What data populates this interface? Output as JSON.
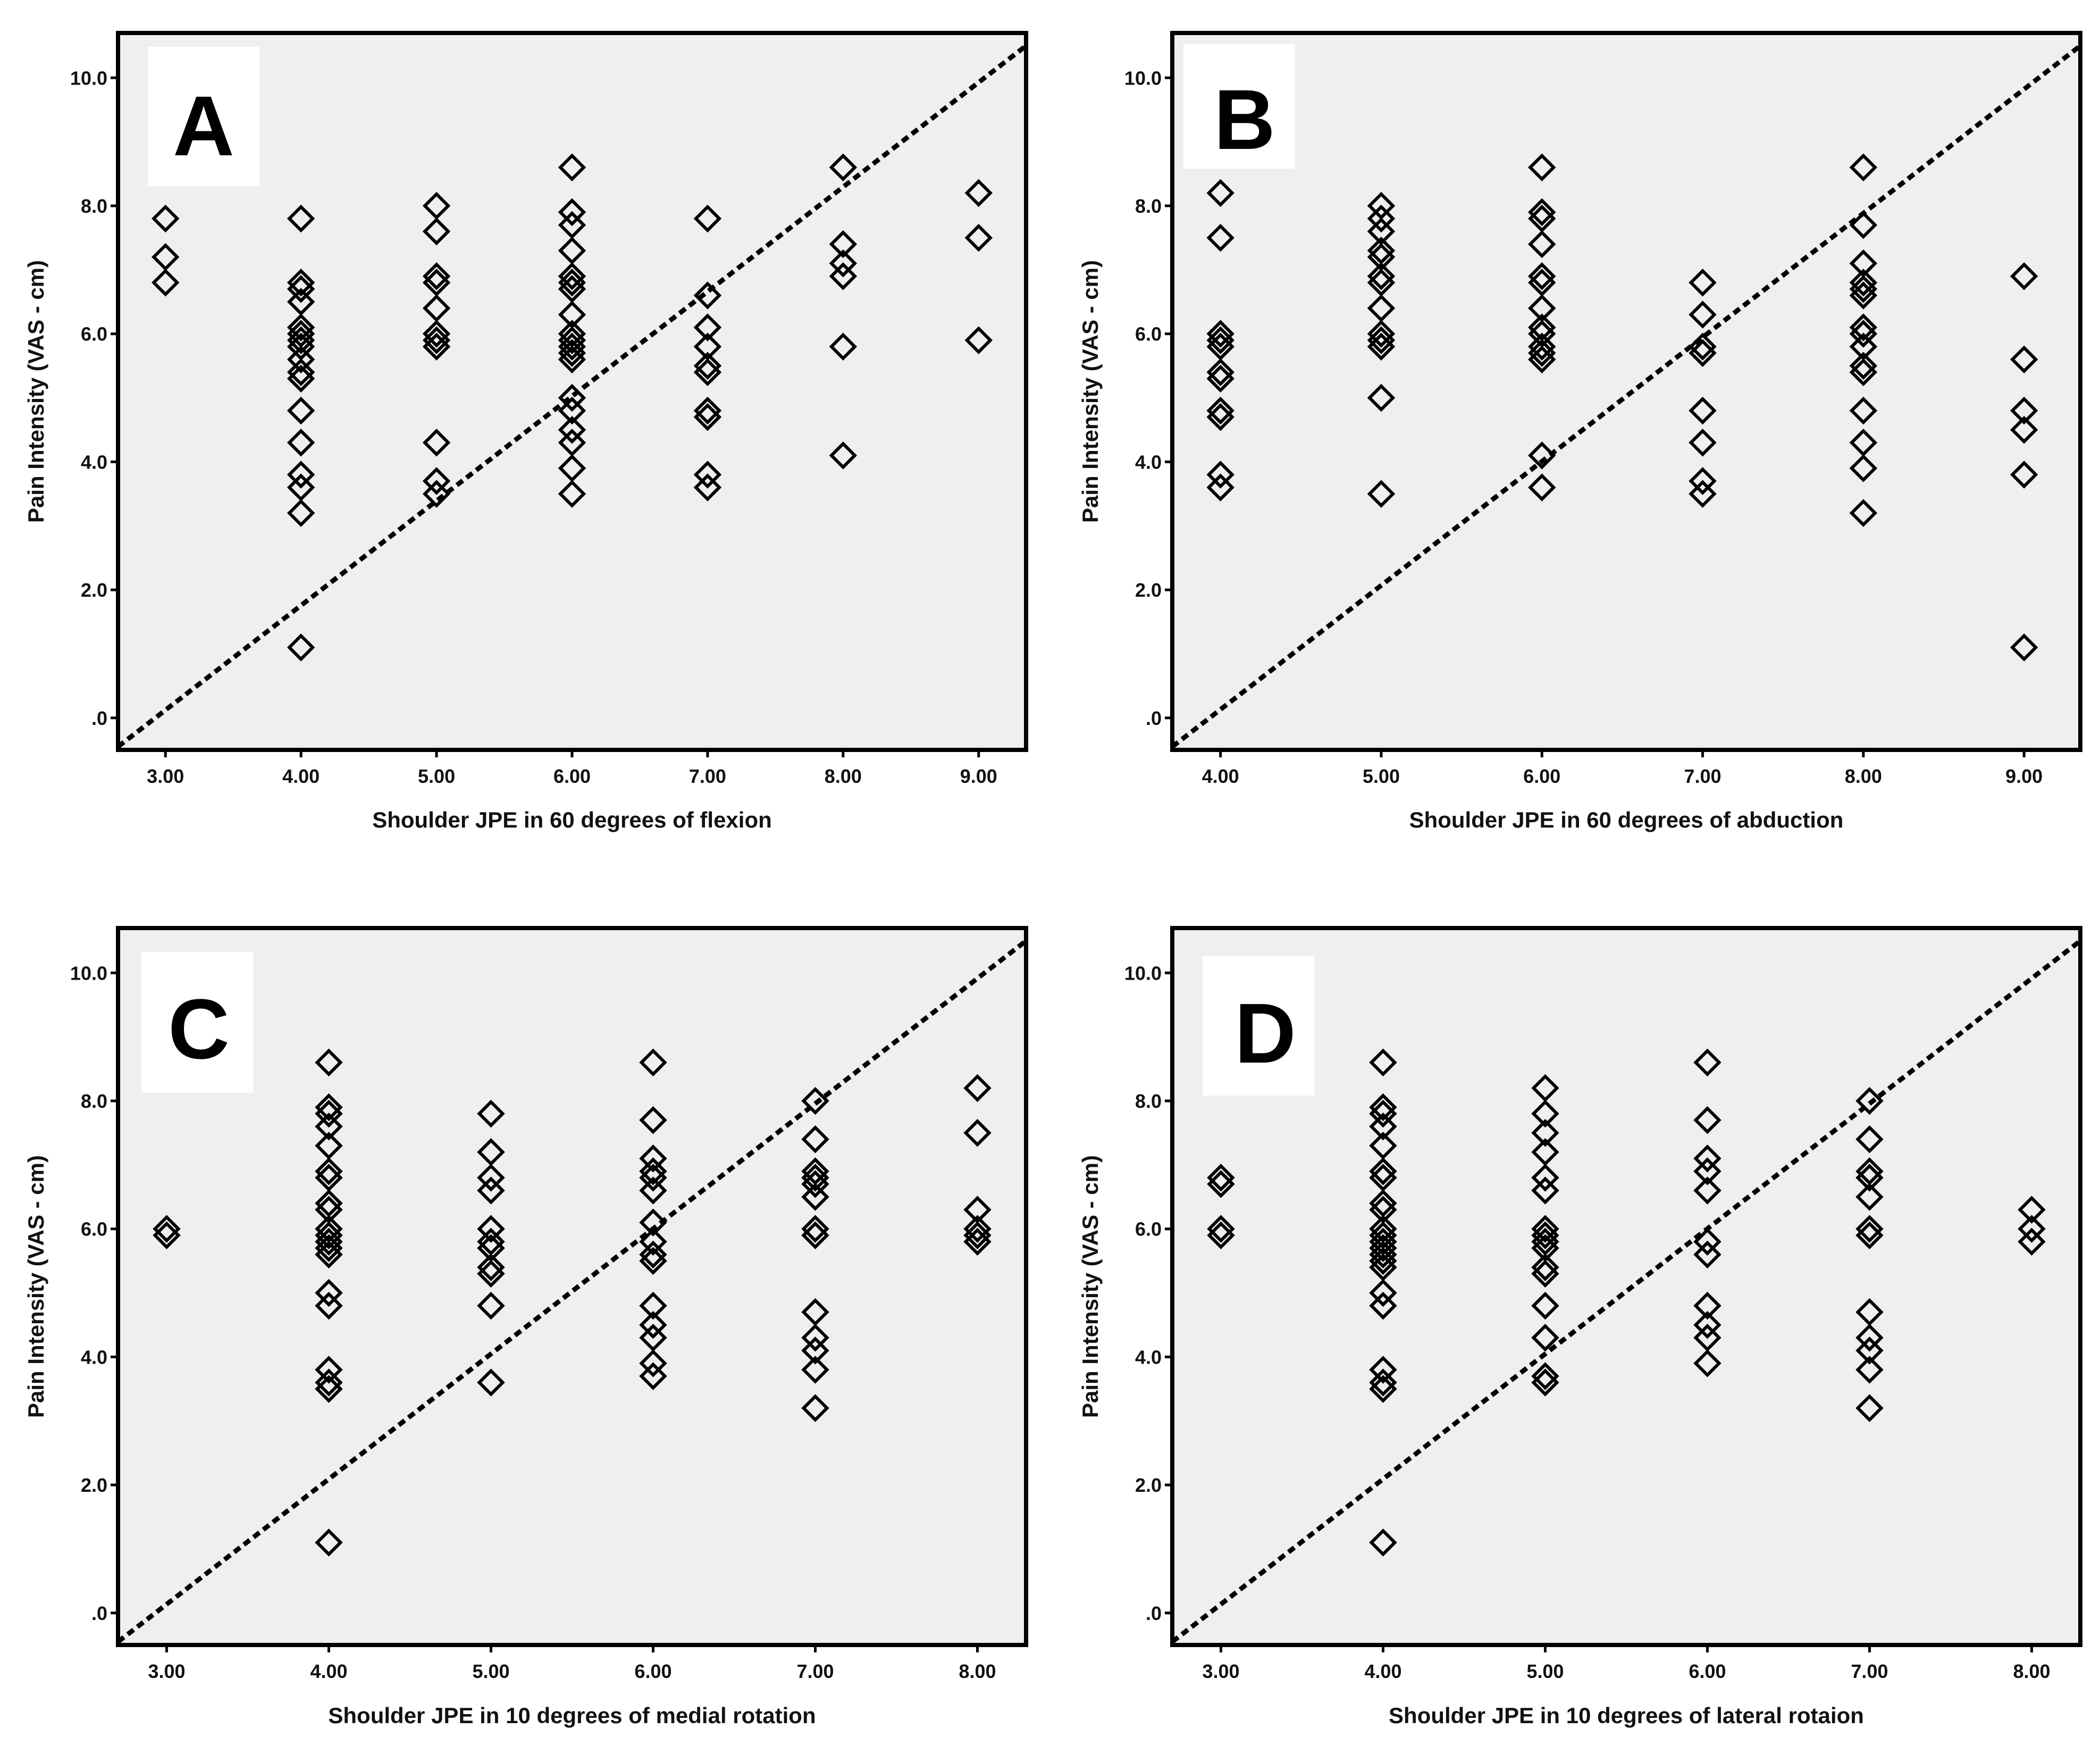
{
  "figure": {
    "marker_color": "#000000",
    "plot_background": "#efefef",
    "page_background": "#ffffff",
    "marker": "diamond-open",
    "reference_line": "dashed diagonal"
  },
  "chart_data": [
    {
      "type": "scatter",
      "panel_label": "A",
      "xlabel": "Shoulder JPE in 60 degrees of flexion",
      "ylabel": "Pain Intensity (VAS - cm)",
      "xlim": [
        2.65,
        9.35
      ],
      "ylim": [
        -0.5,
        10.7
      ],
      "x_ticks": [
        3,
        4,
        5,
        6,
        7,
        8,
        9
      ],
      "x_tick_labels": [
        "3.00",
        "4.00",
        "5.00",
        "6.00",
        "7.00",
        "8.00",
        "9.00"
      ],
      "y_ticks": [
        0,
        2,
        4,
        6,
        8,
        10
      ],
      "y_tick_labels": [
        ".0",
        "2.0",
        "4.0",
        "6.0",
        "8.0",
        "10.0"
      ],
      "reference_line": [
        [
          2.65,
          -0.45
        ],
        [
          9.35,
          10.5
        ]
      ],
      "points": [
        [
          3,
          7.8
        ],
        [
          3,
          7.2
        ],
        [
          3,
          6.8
        ],
        [
          4,
          7.8
        ],
        [
          4,
          6.8
        ],
        [
          4,
          6.7
        ],
        [
          4,
          6.5
        ],
        [
          4,
          6.1
        ],
        [
          4,
          6.0
        ],
        [
          4,
          5.9
        ],
        [
          4,
          5.8
        ],
        [
          4,
          5.6
        ],
        [
          4,
          5.4
        ],
        [
          4,
          5.3
        ],
        [
          4,
          4.8
        ],
        [
          4,
          4.3
        ],
        [
          4,
          3.8
        ],
        [
          4,
          3.6
        ],
        [
          4,
          3.2
        ],
        [
          4,
          1.1
        ],
        [
          5,
          8.0
        ],
        [
          5,
          7.6
        ],
        [
          5,
          6.9
        ],
        [
          5,
          6.8
        ],
        [
          5,
          6.4
        ],
        [
          5,
          6.0
        ],
        [
          5,
          5.9
        ],
        [
          5,
          5.8
        ],
        [
          5,
          4.3
        ],
        [
          5,
          3.7
        ],
        [
          5,
          3.5
        ],
        [
          6,
          8.6
        ],
        [
          6,
          7.9
        ],
        [
          6,
          7.7
        ],
        [
          6,
          7.3
        ],
        [
          6,
          6.9
        ],
        [
          6,
          6.8
        ],
        [
          6,
          6.7
        ],
        [
          6,
          6.3
        ],
        [
          6,
          6.0
        ],
        [
          6,
          5.9
        ],
        [
          6,
          5.8
        ],
        [
          6,
          5.7
        ],
        [
          6,
          5.6
        ],
        [
          6,
          5.0
        ],
        [
          6,
          4.8
        ],
        [
          6,
          4.5
        ],
        [
          6,
          4.3
        ],
        [
          6,
          3.9
        ],
        [
          6,
          3.5
        ],
        [
          7,
          7.8
        ],
        [
          7,
          6.6
        ],
        [
          7,
          6.1
        ],
        [
          7,
          5.8
        ],
        [
          7,
          5.5
        ],
        [
          7,
          5.4
        ],
        [
          7,
          4.8
        ],
        [
          7,
          4.7
        ],
        [
          7,
          3.8
        ],
        [
          7,
          3.6
        ],
        [
          8,
          8.6
        ],
        [
          8,
          7.4
        ],
        [
          8,
          7.1
        ],
        [
          8,
          6.9
        ],
        [
          8,
          5.8
        ],
        [
          8,
          4.1
        ],
        [
          9,
          8.2
        ],
        [
          9,
          7.5
        ],
        [
          9,
          5.9
        ]
      ]
    },
    {
      "type": "scatter",
      "panel_label": "B",
      "xlabel": "Shoulder JPE in 60 degrees of abduction",
      "ylabel": "Pain Intensity (VAS - cm)",
      "xlim": [
        3.7,
        9.35
      ],
      "ylim": [
        -0.5,
        10.7
      ],
      "x_ticks": [
        4,
        5,
        6,
        7,
        8,
        9
      ],
      "x_tick_labels": [
        "4.00",
        "5.00",
        "6.00",
        "7.00",
        "8.00",
        "9.00"
      ],
      "y_ticks": [
        0,
        2,
        4,
        6,
        8,
        10
      ],
      "y_tick_labels": [
        ".0",
        "2.0",
        "4.0",
        "6.0",
        "8.0",
        "10.0"
      ],
      "reference_line": [
        [
          3.7,
          -0.45
        ],
        [
          9.35,
          10.5
        ]
      ],
      "points": [
        [
          4,
          8.2
        ],
        [
          4,
          7.5
        ],
        [
          4,
          6.0
        ],
        [
          4,
          5.9
        ],
        [
          4,
          5.8
        ],
        [
          4,
          5.4
        ],
        [
          4,
          5.3
        ],
        [
          4,
          4.8
        ],
        [
          4,
          4.7
        ],
        [
          4,
          3.8
        ],
        [
          4,
          3.6
        ],
        [
          5,
          8.0
        ],
        [
          5,
          7.8
        ],
        [
          5,
          7.6
        ],
        [
          5,
          7.3
        ],
        [
          5,
          7.2
        ],
        [
          5,
          6.9
        ],
        [
          5,
          6.8
        ],
        [
          5,
          6.4
        ],
        [
          5,
          6.0
        ],
        [
          5,
          5.9
        ],
        [
          5,
          5.8
        ],
        [
          5,
          5.0
        ],
        [
          5,
          3.5
        ],
        [
          6,
          8.6
        ],
        [
          6,
          7.9
        ],
        [
          6,
          7.8
        ],
        [
          6,
          7.4
        ],
        [
          6,
          6.9
        ],
        [
          6,
          6.8
        ],
        [
          6,
          6.4
        ],
        [
          6,
          6.1
        ],
        [
          6,
          6.0
        ],
        [
          6,
          5.8
        ],
        [
          6,
          5.7
        ],
        [
          6,
          5.6
        ],
        [
          6,
          4.1
        ],
        [
          6,
          3.6
        ],
        [
          7,
          6.8
        ],
        [
          7,
          6.3
        ],
        [
          7,
          5.8
        ],
        [
          7,
          5.7
        ],
        [
          7,
          4.8
        ],
        [
          7,
          4.3
        ],
        [
          7,
          3.7
        ],
        [
          7,
          3.5
        ],
        [
          8,
          8.6
        ],
        [
          8,
          7.7
        ],
        [
          8,
          7.1
        ],
        [
          8,
          6.8
        ],
        [
          8,
          6.7
        ],
        [
          8,
          6.6
        ],
        [
          8,
          6.1
        ],
        [
          8,
          6.0
        ],
        [
          8,
          5.8
        ],
        [
          8,
          5.5
        ],
        [
          8,
          5.4
        ],
        [
          8,
          4.8
        ],
        [
          8,
          4.3
        ],
        [
          8,
          3.9
        ],
        [
          8,
          3.2
        ],
        [
          9,
          6.9
        ],
        [
          9,
          5.6
        ],
        [
          9,
          4.8
        ],
        [
          9,
          4.5
        ],
        [
          9,
          3.8
        ],
        [
          9,
          1.1
        ]
      ]
    },
    {
      "type": "scatter",
      "panel_label": "C",
      "xlabel": "Shoulder JPE in 10 degrees of medial rotation",
      "ylabel": "Pain Intensity (VAS - cm)",
      "xlim": [
        2.7,
        8.3
      ],
      "ylim": [
        -0.5,
        10.7
      ],
      "x_ticks": [
        3,
        4,
        5,
        6,
        7,
        8
      ],
      "x_tick_labels": [
        "3.00",
        "4.00",
        "5.00",
        "6.00",
        "7.00",
        "8.00"
      ],
      "y_ticks": [
        0,
        2,
        4,
        6,
        8,
        10
      ],
      "y_tick_labels": [
        ".0",
        "2.0",
        "4.0",
        "6.0",
        "8.0",
        "10.0"
      ],
      "reference_line": [
        [
          2.7,
          -0.45
        ],
        [
          8.3,
          10.5
        ]
      ],
      "points": [
        [
          3,
          6.0
        ],
        [
          3,
          5.9
        ],
        [
          4,
          8.6
        ],
        [
          4,
          7.9
        ],
        [
          4,
          7.8
        ],
        [
          4,
          7.6
        ],
        [
          4,
          7.3
        ],
        [
          4,
          6.9
        ],
        [
          4,
          6.8
        ],
        [
          4,
          6.4
        ],
        [
          4,
          6.3
        ],
        [
          4,
          6.0
        ],
        [
          4,
          5.9
        ],
        [
          4,
          5.8
        ],
        [
          4,
          5.7
        ],
        [
          4,
          5.6
        ],
        [
          4,
          5.0
        ],
        [
          4,
          4.8
        ],
        [
          4,
          3.8
        ],
        [
          4,
          3.6
        ],
        [
          4,
          3.5
        ],
        [
          4,
          1.1
        ],
        [
          5,
          7.8
        ],
        [
          5,
          7.2
        ],
        [
          5,
          6.8
        ],
        [
          5,
          6.6
        ],
        [
          5,
          6.0
        ],
        [
          5,
          5.8
        ],
        [
          5,
          5.7
        ],
        [
          5,
          5.4
        ],
        [
          5,
          5.3
        ],
        [
          5,
          4.8
        ],
        [
          5,
          3.6
        ],
        [
          6,
          8.6
        ],
        [
          6,
          7.7
        ],
        [
          6,
          7.1
        ],
        [
          6,
          6.9
        ],
        [
          6,
          6.8
        ],
        [
          6,
          6.6
        ],
        [
          6,
          6.1
        ],
        [
          6,
          5.8
        ],
        [
          6,
          5.6
        ],
        [
          6,
          5.5
        ],
        [
          6,
          4.8
        ],
        [
          6,
          4.5
        ],
        [
          6,
          4.3
        ],
        [
          6,
          3.9
        ],
        [
          6,
          3.7
        ],
        [
          7,
          8.0
        ],
        [
          7,
          7.4
        ],
        [
          7,
          6.9
        ],
        [
          7,
          6.8
        ],
        [
          7,
          6.7
        ],
        [
          7,
          6.5
        ],
        [
          7,
          6.0
        ],
        [
          7,
          5.9
        ],
        [
          7,
          4.7
        ],
        [
          7,
          4.3
        ],
        [
          7,
          4.1
        ],
        [
          7,
          3.8
        ],
        [
          7,
          3.2
        ],
        [
          8,
          8.2
        ],
        [
          8,
          7.5
        ],
        [
          8,
          6.3
        ],
        [
          8,
          6.0
        ],
        [
          8,
          5.9
        ],
        [
          8,
          5.8
        ]
      ]
    },
    {
      "type": "scatter",
      "panel_label": "D",
      "xlabel": "Shoulder JPE in 10 degrees of lateral rotaion",
      "ylabel": "Pain Intensity (VAS - cm)",
      "xlim": [
        2.7,
        8.3
      ],
      "ylim": [
        -0.5,
        10.7
      ],
      "x_ticks": [
        3,
        4,
        5,
        6,
        7,
        8
      ],
      "x_tick_labels": [
        "3.00",
        "4.00",
        "5.00",
        "6.00",
        "7.00",
        "8.00"
      ],
      "y_ticks": [
        0,
        2,
        4,
        6,
        8,
        10
      ],
      "y_tick_labels": [
        ".0",
        "2.0",
        "4.0",
        "6.0",
        "8.0",
        "10.0"
      ],
      "reference_line": [
        [
          2.7,
          -0.45
        ],
        [
          8.3,
          10.5
        ]
      ],
      "points": [
        [
          3,
          6.8
        ],
        [
          3,
          6.7
        ],
        [
          3,
          6.0
        ],
        [
          3,
          5.9
        ],
        [
          4,
          8.6
        ],
        [
          4,
          7.9
        ],
        [
          4,
          7.8
        ],
        [
          4,
          7.6
        ],
        [
          4,
          7.3
        ],
        [
          4,
          6.9
        ],
        [
          4,
          6.8
        ],
        [
          4,
          6.4
        ],
        [
          4,
          6.3
        ],
        [
          4,
          6.0
        ],
        [
          4,
          5.9
        ],
        [
          4,
          5.8
        ],
        [
          4,
          5.7
        ],
        [
          4,
          5.6
        ],
        [
          4,
          5.5
        ],
        [
          4,
          5.4
        ],
        [
          4,
          5.0
        ],
        [
          4,
          4.8
        ],
        [
          4,
          3.8
        ],
        [
          4,
          3.6
        ],
        [
          4,
          3.5
        ],
        [
          4,
          1.1
        ],
        [
          5,
          8.2
        ],
        [
          5,
          7.8
        ],
        [
          5,
          7.5
        ],
        [
          5,
          7.2
        ],
        [
          5,
          6.8
        ],
        [
          5,
          6.6
        ],
        [
          5,
          6.0
        ],
        [
          5,
          5.9
        ],
        [
          5,
          5.8
        ],
        [
          5,
          5.7
        ],
        [
          5,
          5.4
        ],
        [
          5,
          5.3
        ],
        [
          5,
          4.8
        ],
        [
          5,
          4.3
        ],
        [
          5,
          3.7
        ],
        [
          5,
          3.6
        ],
        [
          6,
          8.6
        ],
        [
          6,
          7.7
        ],
        [
          6,
          7.1
        ],
        [
          6,
          6.9
        ],
        [
          6,
          6.6
        ],
        [
          6,
          5.8
        ],
        [
          6,
          5.6
        ],
        [
          6,
          4.8
        ],
        [
          6,
          4.5
        ],
        [
          6,
          4.3
        ],
        [
          6,
          3.9
        ],
        [
          7,
          8.0
        ],
        [
          7,
          7.4
        ],
        [
          7,
          6.9
        ],
        [
          7,
          6.8
        ],
        [
          7,
          6.5
        ],
        [
          7,
          6.0
        ],
        [
          7,
          5.9
        ],
        [
          7,
          4.7
        ],
        [
          7,
          4.3
        ],
        [
          7,
          4.1
        ],
        [
          7,
          3.8
        ],
        [
          7,
          3.2
        ],
        [
          8,
          6.3
        ],
        [
          8,
          6.0
        ],
        [
          8,
          5.8
        ]
      ]
    }
  ]
}
